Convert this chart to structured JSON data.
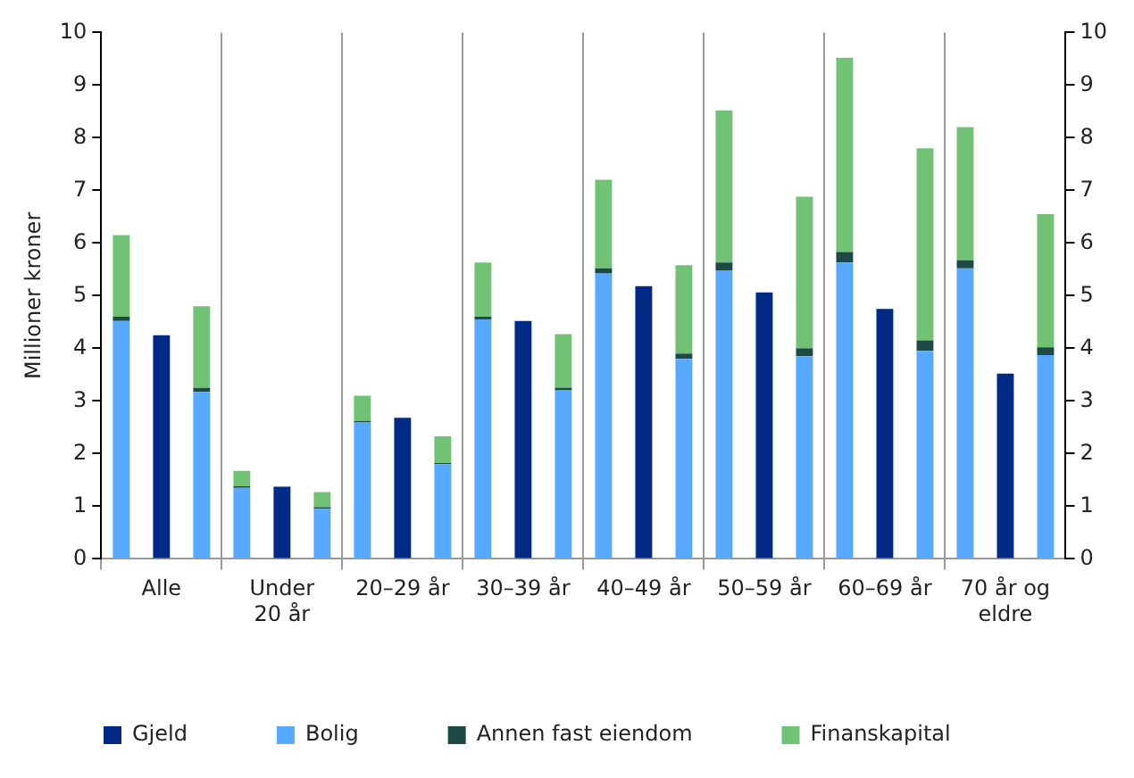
{
  "chart_data": {
    "type": "bar",
    "ylabel": "Millioner kroner",
    "categories": [
      null,
      "Alle",
      null,
      null,
      "Under 20 år",
      null,
      null,
      "20–29 år",
      null,
      null,
      "30–39 år",
      null,
      null,
      "40–49 år",
      null,
      null,
      "50–59 år",
      null,
      null,
      "60–69 år",
      null,
      null,
      "70 år og eldre",
      null
    ],
    "series": [
      {
        "name": "Gjeld",
        "color": "#002a85",
        "values": [
          null,
          4.25,
          null,
          null,
          1.37,
          null,
          null,
          2.68,
          null,
          null,
          4.52,
          null,
          null,
          5.18,
          null,
          null,
          5.06,
          null,
          null,
          4.75,
          null,
          null,
          3.52,
          null
        ]
      },
      {
        "name": "Bolig",
        "color": "#57a9ff",
        "values": [
          4.52,
          null,
          3.17,
          1.35,
          null,
          0.95,
          2.6,
          null,
          1.8,
          4.55,
          null,
          3.2,
          5.42,
          null,
          3.8,
          5.48,
          null,
          3.85,
          5.63,
          null,
          3.95,
          5.52,
          null,
          3.87
        ]
      },
      {
        "name": "Annen fast eiendom",
        "color": "#1e4a46",
        "values": [
          0.08,
          null,
          0.08,
          0.03,
          null,
          0.03,
          0.02,
          null,
          0.02,
          0.05,
          null,
          0.05,
          0.1,
          null,
          0.1,
          0.15,
          null,
          0.15,
          0.2,
          null,
          0.2,
          0.15,
          null,
          0.15
        ]
      },
      {
        "name": "Finanskapital",
        "color": "#72c275",
        "values": [
          1.55,
          null,
          1.55,
          0.29,
          null,
          0.29,
          0.48,
          null,
          0.51,
          1.03,
          null,
          1.02,
          1.68,
          null,
          1.68,
          2.89,
          null,
          2.88,
          3.69,
          null,
          3.65,
          2.53,
          null,
          2.53
        ]
      }
    ],
    "stacked": true,
    "ylim": [
      0,
      10
    ],
    "yticks": [
      0,
      1,
      2,
      3,
      4,
      5,
      6,
      7,
      8,
      9,
      10
    ],
    "y2lim": [
      0,
      10
    ],
    "y2ticks": [
      0,
      1,
      2,
      3,
      4,
      5,
      6,
      7,
      8,
      9,
      10
    ],
    "grid": "x",
    "legend": "bottom"
  }
}
